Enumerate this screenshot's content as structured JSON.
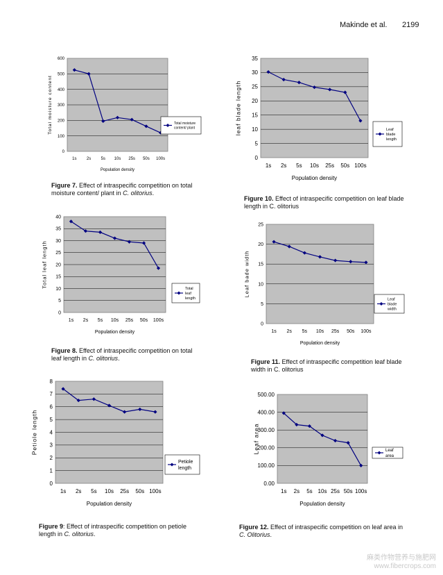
{
  "header": {
    "authors": "Makinde et al.",
    "page": "2199"
  },
  "charts": [
    {
      "id": "fig7",
      "caption": {
        "label": "Figure 7.",
        "text": " Effect of intraspecific competition on total moisture content/ plant in ",
        "italic": "C. olitorius",
        "end": "."
      }
    },
    {
      "id": "fig8",
      "caption": {
        "label": "Figure 8.",
        "text": " Effect of intraspecific competition on total leaf length in ",
        "italic": "C. olitorius",
        "end": "."
      }
    },
    {
      "id": "fig9",
      "caption": {
        "label": "Figure 9",
        "text": ": Effect of intraspecific competition on petiole length in ",
        "italic": "C. olitorius",
        "end": "."
      }
    },
    {
      "id": "fig10",
      "caption": {
        "label": "Figure 10.",
        "text": " Effect of intraspecific competition on leaf blade length in C. olitorius",
        "italic": "",
        "end": ""
      }
    },
    {
      "id": "fig11",
      "caption": {
        "label": "Figure 11.",
        "text": " Effect of intraspecific competition leaf blade width in C. olitorius",
        "italic": "",
        "end": ""
      }
    },
    {
      "id": "fig12",
      "caption": {
        "label": "Figure 12.",
        "text": " Effect of intraspecific competition on leaf area in ",
        "italic": "C. Olitorius",
        "end": "."
      }
    }
  ],
  "chart_data": [
    {
      "type": "line",
      "categories": [
        "1s",
        "2s",
        "5s",
        "10s",
        "25s",
        "50s",
        "100s"
      ],
      "series": [
        {
          "name": "Total moisture content/ plant",
          "values": [
            525,
            500,
            195,
            218,
            205,
            162,
            120
          ]
        }
      ],
      "xlabel": "Population density",
      "ylabel": "Total moisture content",
      "ylim": [
        0,
        600
      ],
      "yticks": [
        0,
        100,
        200,
        300,
        400,
        500,
        600
      ],
      "grid": true,
      "legend": "right"
    },
    {
      "type": "line",
      "categories": [
        "1s",
        "2s",
        "5s",
        "10s",
        "25s",
        "50s",
        "100s"
      ],
      "series": [
        {
          "name": "Total leaf length",
          "values": [
            38,
            34,
            33.5,
            31,
            29.5,
            29,
            18.5
          ]
        }
      ],
      "xlabel": "Population density",
      "ylabel": "Total leaf length",
      "ylim": [
        0,
        40
      ],
      "yticks": [
        0,
        5,
        10,
        15,
        20,
        25,
        30,
        35,
        40
      ],
      "grid": true,
      "legend": "right"
    },
    {
      "type": "line",
      "categories": [
        "1s",
        "2s",
        "5s",
        "10s",
        "25s",
        "50s",
        "100s"
      ],
      "series": [
        {
          "name": "Petiole length",
          "values": [
            7.4,
            6.5,
            6.6,
            6.1,
            5.6,
            5.8,
            5.6
          ]
        }
      ],
      "xlabel": "Population density",
      "ylabel": "Petiole length",
      "ylim": [
        0,
        8
      ],
      "yticks": [
        0,
        1,
        2,
        3,
        4,
        5,
        6,
        7,
        8
      ],
      "grid": true,
      "legend": "right"
    },
    {
      "type": "line",
      "categories": [
        "1s",
        "2s",
        "5s",
        "10s",
        "25s",
        "50s",
        "100s"
      ],
      "series": [
        {
          "name": "Leaf blade length",
          "values": [
            30.2,
            27.5,
            26.5,
            24.8,
            24,
            23,
            13
          ]
        }
      ],
      "xlabel": "Population density",
      "ylabel": "leaf blade length",
      "ylim": [
        0,
        35
      ],
      "yticks": [
        0,
        5,
        10,
        15,
        20,
        25,
        30,
        35
      ],
      "grid": true,
      "legend": "right"
    },
    {
      "type": "line",
      "categories": [
        "1s",
        "2s",
        "5s",
        "10s",
        "25s",
        "50s",
        "100s"
      ],
      "series": [
        {
          "name": "Leaf blade width",
          "values": [
            20.6,
            19.4,
            17.8,
            16.8,
            15.9,
            15.6,
            15.4
          ]
        }
      ],
      "xlabel": "Population density",
      "ylabel": "Leaf bade width",
      "ylim": [
        0,
        25
      ],
      "yticks": [
        0,
        5,
        10,
        15,
        20,
        25
      ],
      "grid": true,
      "legend": "right"
    },
    {
      "type": "line",
      "categories": [
        "1s",
        "2s",
        "5s",
        "10s",
        "25s",
        "50s",
        "100s"
      ],
      "series": [
        {
          "name": "Leaf area",
          "values": [
            395,
            330,
            322,
            270,
            240,
            228,
            100
          ]
        }
      ],
      "xlabel": "Population density",
      "ylabel": "Leaf area",
      "ylim": [
        0,
        500
      ],
      "yticks": [
        "0.00",
        "100.00",
        "200.00",
        "300.00",
        "400.00",
        "500.00"
      ],
      "grid": true,
      "legend": "right"
    }
  ],
  "watermark": {
    "line1": "麻类作物营养与施肥网",
    "line2": "www.fibercrops.com"
  }
}
